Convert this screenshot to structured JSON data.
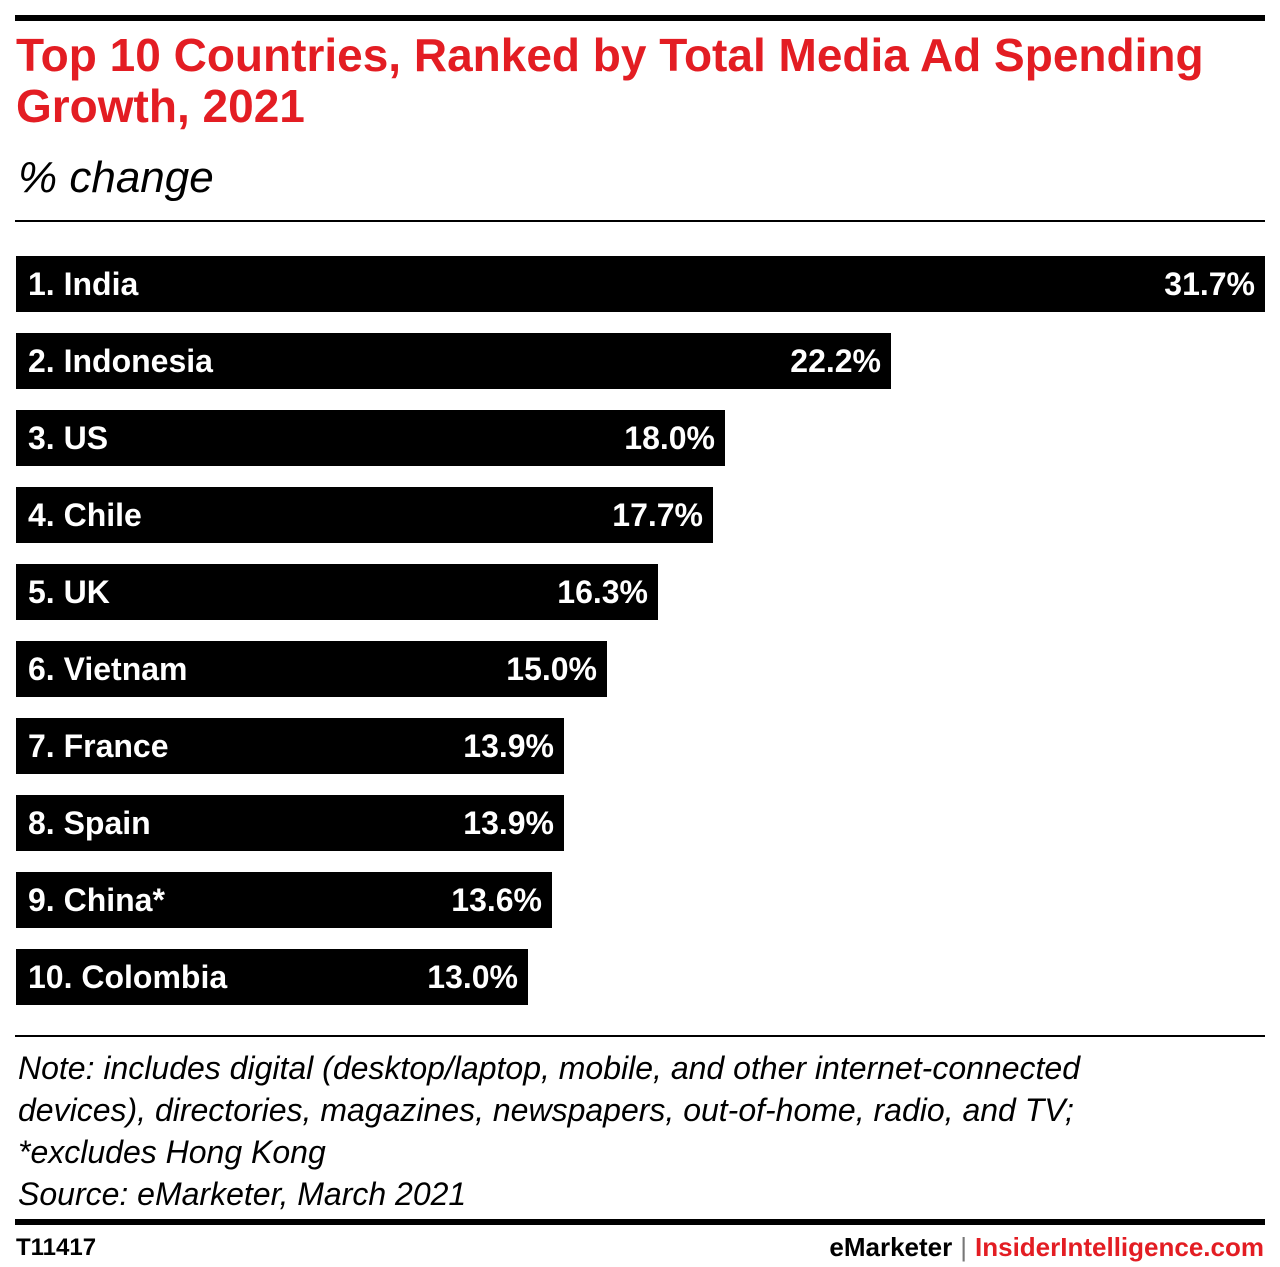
{
  "header": {
    "title": "Top 10 Countries, Ranked by Total Media Ad Spending Growth, 2021",
    "subtitle": "% change"
  },
  "chart_data": {
    "type": "bar",
    "orientation": "horizontal",
    "title": "Top 10 Countries, Ranked by Total Media Ad Spending Growth, 2021",
    "subtitle": "% change",
    "categories": [
      "1. India",
      "2. Indonesia",
      "3. US",
      "4. Chile",
      "5. UK",
      "6. Vietnam",
      "7. France",
      "8. Spain",
      "9. China*",
      "10. Colombia"
    ],
    "values": [
      31.7,
      22.2,
      18.0,
      17.7,
      16.3,
      15.0,
      13.9,
      13.9,
      13.6,
      13.0
    ],
    "data_labels": [
      "31.7%",
      "22.2%",
      "18.0%",
      "17.7%",
      "16.3%",
      "15.0%",
      "13.9%",
      "13.9%",
      "13.6%",
      "13.0%"
    ],
    "xlim": [
      0,
      31.7
    ],
    "grid": false,
    "legend": "none",
    "bar_color": "#000000",
    "label_color": "#ffffff"
  },
  "footer": {
    "note_lines": [
      "Note: includes digital (desktop/laptop, mobile, and other internet-connected",
      "devices), directories, magazines, newspapers, out-of-home, radio, and TV;",
      "*excludes Hong Kong",
      "Source: eMarketer, March 2021"
    ],
    "chart_id": "T11417",
    "brand_left": "eMarketer",
    "brand_separator": "|",
    "brand_right": "InsiderIntelligence.com"
  },
  "colors": {
    "title": "#e31d23",
    "bars": "#000000",
    "brand": "#e31d23"
  }
}
